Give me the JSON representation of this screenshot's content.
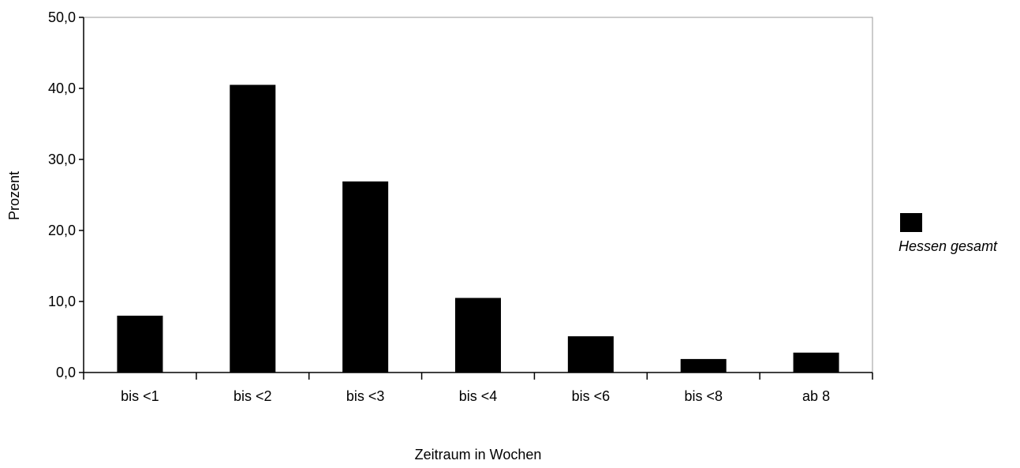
{
  "chart_data": {
    "type": "bar",
    "categories": [
      "bis <1",
      "bis <2",
      "bis <3",
      "bis <4",
      "bis <6",
      "bis <8",
      "ab 8"
    ],
    "series": [
      {
        "name": "Hessen gesamt",
        "values": [
          8.0,
          40.5,
          26.9,
          10.5,
          5.1,
          1.9,
          2.8
        ],
        "color": "#000000"
      }
    ],
    "xlabel": "Zeitraum in Wochen",
    "ylabel": "Prozent",
    "ylim": [
      0,
      50
    ],
    "yticks": [
      "0,0",
      "10,0",
      "20,0",
      "30,0",
      "40,0",
      "50,0"
    ],
    "grid": false,
    "legend_position": "right"
  }
}
